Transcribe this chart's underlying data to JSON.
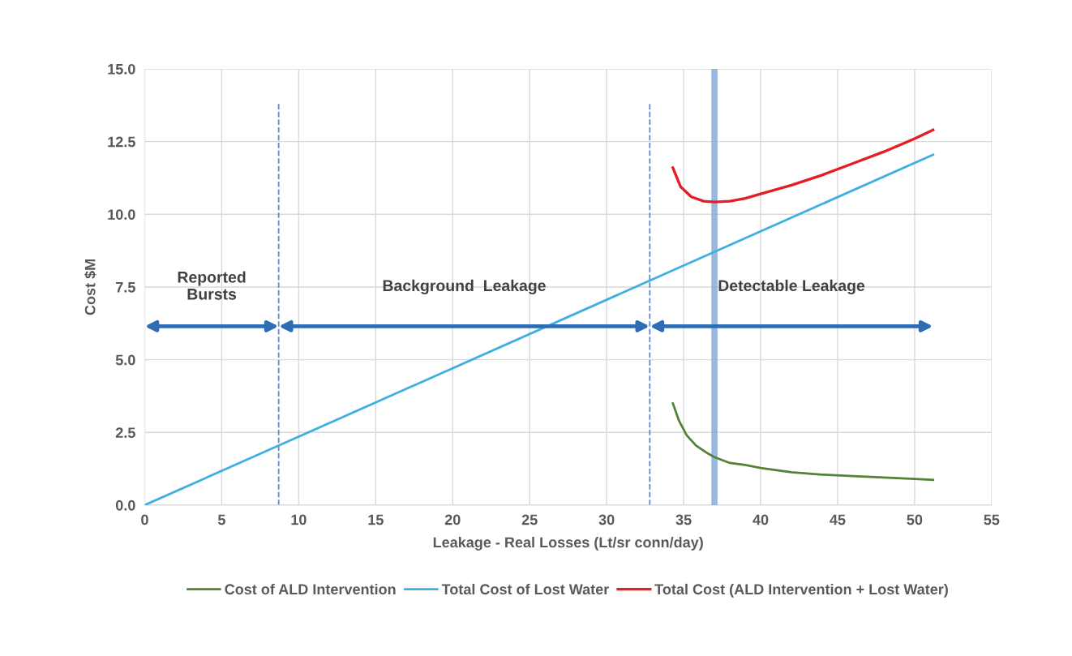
{
  "chart_data": {
    "type": "line",
    "xlabel": "Leakage - Real Losses (Lt/sr conn/day)",
    "ylabel": "Cost $M",
    "xlim": [
      0,
      55
    ],
    "xticks": [
      0,
      5,
      10,
      15,
      20,
      25,
      30,
      35,
      40,
      45,
      50,
      55
    ],
    "ylim": [
      0,
      15
    ],
    "yticks": [
      {
        "value": 0,
        "label": "0.0"
      },
      {
        "value": 2.5,
        "label": "2.5"
      },
      {
        "value": 5,
        "label": "5.0"
      },
      {
        "value": 7.5,
        "label": "7.5"
      },
      {
        "value": 10,
        "label": "10.0"
      },
      {
        "value": 12.5,
        "label": "12.5"
      },
      {
        "value": 15,
        "label": "15.0"
      }
    ],
    "grid": true,
    "legend": "bottom",
    "marker": "none",
    "line_style": "solid",
    "series": [
      {
        "name": "Cost of ALD Intervention",
        "color": "#548235",
        "x": [
          34.3,
          34.7,
          35.2,
          35.8,
          36.5,
          37,
          38,
          39,
          40,
          42,
          44,
          46,
          48,
          50,
          51.2
        ],
        "values": [
          3.5,
          2.9,
          2.4,
          2.05,
          1.8,
          1.65,
          1.45,
          1.38,
          1.28,
          1.13,
          1.05,
          1.0,
          0.95,
          0.9,
          0.87
        ]
      },
      {
        "name": "Total Cost of Lost Water",
        "color": "#41aee0",
        "x": [
          0,
          51.2
        ],
        "values": [
          0,
          12.05
        ]
      },
      {
        "name": "Total Cost (ALD Intervention + Lost Water)",
        "color": "#e31e24",
        "x": [
          34.3,
          34.8,
          35.5,
          36.3,
          37,
          38,
          39,
          40,
          42,
          44,
          46,
          48,
          50,
          51.2
        ],
        "values": [
          11.6,
          10.95,
          10.6,
          10.45,
          10.42,
          10.45,
          10.55,
          10.7,
          11.0,
          11.35,
          11.75,
          12.15,
          12.6,
          12.9
        ]
      }
    ],
    "ref_lines": [
      {
        "axis": "x",
        "value": 8.7,
        "color": "#5b8bd6",
        "line_style": "dashed"
      },
      {
        "axis": "x",
        "value": 32.8,
        "color": "#5b8bd6",
        "line_style": "dashed"
      }
    ],
    "bands": [
      {
        "axis": "x",
        "from": 36.8,
        "to": 37.2,
        "color": "#7fa6d8"
      }
    ],
    "annotations": [
      "Reported\nBursts",
      "Background  Leakage",
      "Detectable Leakage"
    ]
  }
}
